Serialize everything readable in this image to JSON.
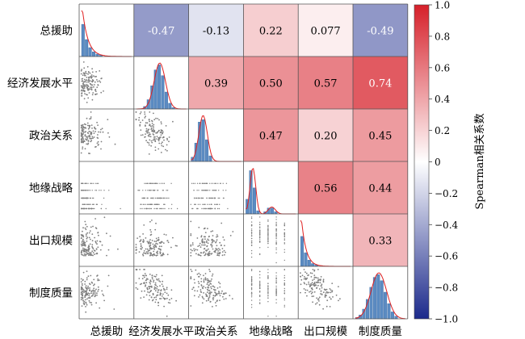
{
  "chart_data": {
    "type": "heatmap",
    "variables": [
      "总援助",
      "经济发展水平",
      "政治关系",
      "地缘战略",
      "出口规模",
      "制度质量"
    ],
    "correlations": [
      {
        "row": 0,
        "col": 1,
        "value": -0.47,
        "label": "-0.47"
      },
      {
        "row": 0,
        "col": 2,
        "value": -0.13,
        "label": "-0.13"
      },
      {
        "row": 0,
        "col": 3,
        "value": 0.22,
        "label": "0.22"
      },
      {
        "row": 0,
        "col": 4,
        "value": 0.077,
        "label": "0.077"
      },
      {
        "row": 0,
        "col": 5,
        "value": -0.49,
        "label": "-0.49"
      },
      {
        "row": 1,
        "col": 2,
        "value": 0.39,
        "label": "0.39"
      },
      {
        "row": 1,
        "col": 3,
        "value": 0.5,
        "label": "0.50"
      },
      {
        "row": 1,
        "col": 4,
        "value": 0.57,
        "label": "0.57"
      },
      {
        "row": 1,
        "col": 5,
        "value": 0.74,
        "label": "0.74"
      },
      {
        "row": 2,
        "col": 3,
        "value": 0.47,
        "label": "0.47"
      },
      {
        "row": 2,
        "col": 4,
        "value": 0.2,
        "label": "0.20"
      },
      {
        "row": 2,
        "col": 5,
        "value": 0.45,
        "label": "0.45"
      },
      {
        "row": 3,
        "col": 4,
        "value": 0.56,
        "label": "0.56"
      },
      {
        "row": 3,
        "col": 5,
        "value": 0.44,
        "label": "0.44"
      },
      {
        "row": 4,
        "col": 5,
        "value": 0.33,
        "label": "0.33"
      }
    ],
    "diagonal": "histogram with density curve",
    "lower_triangle": "scatter plots",
    "colorbar": {
      "label": "Spearman相关系数",
      "range": [
        -1,
        1
      ],
      "ticks": [
        "1.0",
        "0.8",
        "0.6",
        "0.4",
        "0.2",
        "0",
        "−0.2",
        "−0.4",
        "−0.6",
        "−0.8",
        "−1.0"
      ],
      "colors": {
        "negative": "#1c2a8c",
        "zero": "#ffffff",
        "positive": "#d6202a"
      }
    },
    "histogram_color": "#5b8bc2",
    "density_color": "#e02020",
    "scatter_color": "#7f7f7f"
  }
}
